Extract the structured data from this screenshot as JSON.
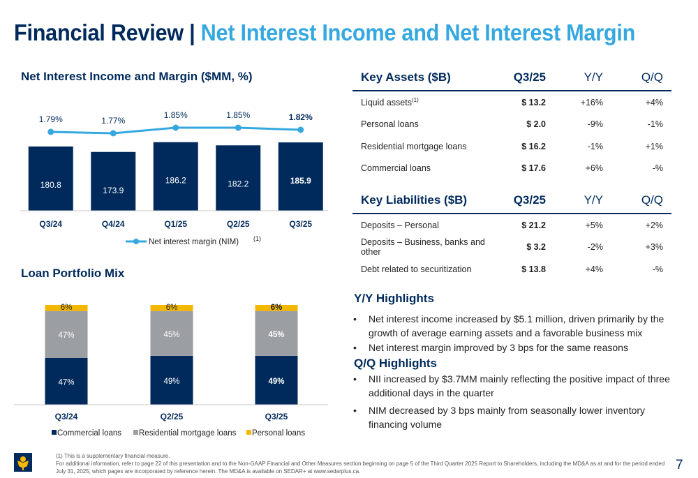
{
  "title": {
    "part1": "Financial Review | ",
    "part2": "Net Interest Income and Net Interest Margin"
  },
  "colors": {
    "navy": "#002a5c",
    "light_blue": "#35a8e0",
    "gray": "#9b9ea3",
    "yellow": "#f5b800"
  },
  "nii_chart": {
    "title": "Net Interest Income and Margin ($MM, %)",
    "legend_label": "Net interest margin (NIM)",
    "legend_sup": "(1)"
  },
  "loan_mix": {
    "title": "Loan Portfolio Mix"
  },
  "chart_data": [
    {
      "type": "bar",
      "title": "Net Interest Income and Margin ($MM, %)",
      "categories": [
        "Q3/24",
        "Q4/24",
        "Q1/25",
        "Q2/25",
        "Q3/25"
      ],
      "series": [
        {
          "values": [
            180.8,
            173.9,
            186.2,
            182.2,
            185.9
          ],
          "labels": [
            "180.8",
            "173.9",
            "186.2",
            "182.2",
            "185.9"
          ]
        },
        {
          "name": "Net interest margin (NIM)",
          "type": "line",
          "values": [
            1.79,
            1.77,
            1.85,
            1.85,
            1.82
          ],
          "labels": [
            "1.79%",
            "1.77%",
            "1.85%",
            "1.85%",
            "1.82%"
          ]
        }
      ],
      "legend": "bottom"
    },
    {
      "type": "bar",
      "stacked": true,
      "title": "Loan Portfolio Mix",
      "categories": [
        "Q3/24",
        "Q2/25",
        "Q3/25"
      ],
      "series": [
        {
          "name": "Commercial loans",
          "values": [
            47,
            49,
            49
          ],
          "labels": [
            "47%",
            "49%",
            "49%"
          ]
        },
        {
          "name": "Residential mortgage loans",
          "values": [
            47,
            45,
            45
          ],
          "labels": [
            "47%",
            "45%",
            "45%"
          ]
        },
        {
          "name": "Personal loans",
          "values": [
            6,
            6,
            6
          ],
          "labels": [
            "6%",
            "6%",
            "6%"
          ]
        }
      ],
      "legend": "bottom"
    }
  ],
  "key_assets": {
    "headers": [
      "Key Assets ($B)",
      "Q3/25",
      "Y/Y",
      "Q/Q"
    ],
    "rows": [
      {
        "label": "Liquid assets",
        "sup": "(1)",
        "q3": "$ 13.2",
        "yy": "+16%",
        "qq": "+4%"
      },
      {
        "label": "Personal loans",
        "sup": "",
        "q3": "$ 2.0",
        "yy": "-9%",
        "qq": "-1%"
      },
      {
        "label": "Residential mortgage loans",
        "sup": "",
        "q3": "$ 16.2",
        "yy": "-1%",
        "qq": "+1%"
      },
      {
        "label": "Commercial loans",
        "sup": "",
        "q3": "$ 17.6",
        "yy": "+6%",
        "qq": "-%"
      }
    ]
  },
  "key_liabilities": {
    "headers": [
      "Key Liabilities ($B)",
      "Q3/25",
      "Y/Y",
      "Q/Q"
    ],
    "rows": [
      {
        "label": "Deposits – Personal",
        "sup": "",
        "q3": "$ 21.2",
        "yy": "+5%",
        "qq": "+2%"
      },
      {
        "label": "Deposits – Business, banks and other",
        "sup": "",
        "q3": "$ 3.2",
        "yy": "-2%",
        "qq": "+3%"
      },
      {
        "label": "Debt related to securitization",
        "sup": "",
        "q3": "$ 13.8",
        "yy": "+4%",
        "qq": "-%"
      }
    ]
  },
  "yy_highlights": {
    "title": "Y/Y Highlights",
    "bullets": [
      "Net interest income increased by $5.1 million, driven primarily by the growth of average earning assets and a favorable business mix",
      "Net interest margin improved by 3 bps for the same reasons"
    ]
  },
  "qq_highlights": {
    "title": "Q/Q Highlights",
    "bullets": [
      "NII increased by $3.7MM mainly reflecting the positive impact of three additional days in the quarter",
      "NIM decreased by 3 bps mainly from seasonally lower inventory financing volume"
    ]
  },
  "footnote": {
    "line1": "(1) This is a supplementary financial measure.",
    "line2": "For additional information, refer to page 22 of this presentation and to the Non-GAAP Financial and Other Measures section beginning on page 5 of the Third Quarter 2025 Report to Shareholders, including the MD&A as at and for the period ended July 31, 2025, which pages are incorporated by reference herein. The MD&A is available on SEDAR+ at www.sedarplus.ca."
  },
  "page_number": "7",
  "bullet_char": "•"
}
